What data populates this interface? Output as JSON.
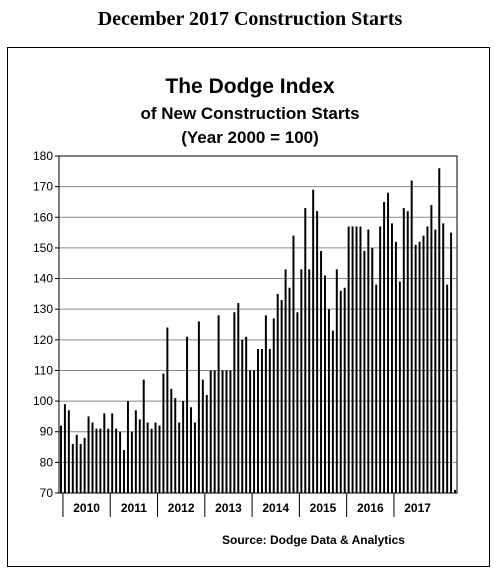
{
  "header": {
    "title": "December 2017 Construction Starts"
  },
  "chart_data": {
    "type": "bar",
    "title": "The Dodge Index",
    "subtitle_lines": [
      "of New Construction Starts",
      "(Year 2000 = 100)"
    ],
    "xlabel": "",
    "ylabel": "",
    "ylim": [
      70,
      180
    ],
    "y_ticks": [
      70,
      80,
      90,
      100,
      110,
      120,
      130,
      140,
      150,
      160,
      170,
      180
    ],
    "x_tick_labels": [
      "2010",
      "2011",
      "2012",
      "2013",
      "2014",
      "2015",
      "2016",
      "2017"
    ],
    "grid": true,
    "bar_color": "#000000",
    "source": "Source:  Dodge Data & Analytics",
    "months_start": "2009-12",
    "values": [
      92,
      99,
      97,
      86,
      89,
      86,
      88,
      95,
      93,
      91,
      91,
      96,
      91,
      96,
      91,
      90,
      84,
      100,
      90,
      97,
      94,
      107,
      93,
      91,
      93,
      92,
      109,
      124,
      104,
      101,
      93,
      100,
      121,
      98,
      93,
      126,
      107,
      102,
      110,
      110,
      128,
      110,
      110,
      110,
      129,
      132,
      120,
      121,
      110,
      110,
      117,
      117,
      128,
      117,
      127,
      135,
      133,
      143,
      137,
      154,
      129,
      143,
      163,
      143,
      169,
      162,
      149,
      141,
      130,
      123,
      143,
      136,
      137,
      157,
      157,
      157,
      157,
      149,
      156,
      150,
      138,
      157,
      165,
      168,
      158,
      152,
      139,
      163,
      162,
      172,
      151,
      152,
      154,
      157,
      164,
      156,
      176,
      158,
      138,
      155,
      71
    ]
  }
}
